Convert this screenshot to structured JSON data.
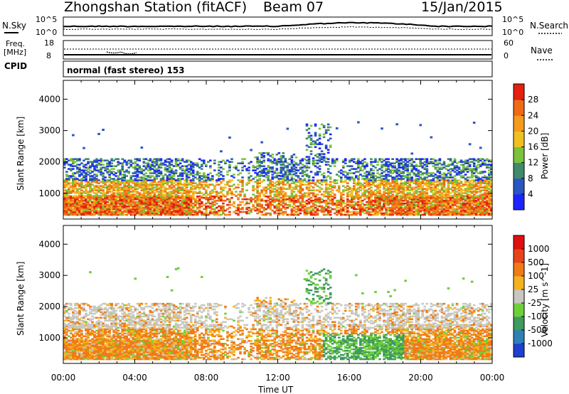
{
  "header": {
    "station": "Zhongshan Station (fitACF)",
    "beam": "Beam 07",
    "date": "15/Jan/2015"
  },
  "top_panels": {
    "nsky": {
      "left_label": "N.Sky",
      "right_label": "N.Search",
      "left_ticks": [
        "10^5",
        "10^0"
      ],
      "right_ticks": [
        "10^5",
        "10^0"
      ]
    },
    "freq": {
      "left_label_line1": "Freq.",
      "left_label_line2": "[MHz]",
      "right_label": "Nave",
      "left_ticks": [
        "18",
        "8"
      ],
      "right_ticks": [
        "60",
        "0"
      ]
    },
    "cpid": {
      "label": "CPID",
      "value": "normal (fast stereo) 153"
    }
  },
  "chart_data": [
    {
      "type": "heatmap",
      "name": "power",
      "ylabel": "Slant Range [km]",
      "xlabel": "",
      "x_ticks": [
        "00:00",
        "04:00",
        "08:00",
        "12:00",
        "16:00",
        "20:00",
        "00:00"
      ],
      "x_range_hours": [
        0,
        24
      ],
      "y_range_km": [
        180,
        4600
      ],
      "y_ticks": [
        1000,
        2000,
        3000,
        4000
      ],
      "colorbar": {
        "label": "Power [dB]",
        "ticks": [
          "4",
          "8",
          "12",
          "16",
          "20",
          "24",
          "28"
        ],
        "colors": [
          "#1e24ff",
          "#2a56c0",
          "#3f8a6a",
          "#7cc23a",
          "#f0c020",
          "#f59a1e",
          "#ee6a14",
          "#e42010"
        ]
      }
    },
    {
      "type": "heatmap",
      "name": "velocity",
      "ylabel": "Slant Range [km]",
      "xlabel": "Time UT",
      "x_ticks": [
        "00:00",
        "04:00",
        "08:00",
        "12:00",
        "16:00",
        "20:00",
        "00:00"
      ],
      "x_range_hours": [
        0,
        24
      ],
      "y_range_km": [
        180,
        4600
      ],
      "y_ticks": [
        1000,
        2000,
        3000,
        4000
      ],
      "colorbar": {
        "label": "Velocity [m s^-1]",
        "ticks": [
          "1000",
          "500",
          "100",
          "25",
          "-25",
          "-100",
          "-500",
          "-1000"
        ],
        "colors": [
          "#1f3fd0",
          "#2f7fb8",
          "#3e9a5e",
          "#6fcf3a",
          "#c8c8c0",
          "#f5b21e",
          "#f07a18",
          "#e8441a",
          "#e01010"
        ]
      }
    }
  ]
}
